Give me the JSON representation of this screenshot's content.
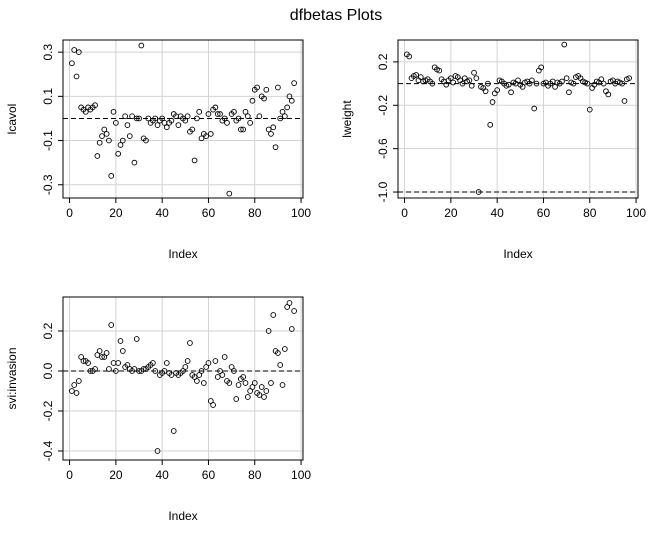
{
  "title": "dfbetas Plots",
  "chart_data": [
    {
      "type": "scatter",
      "xlabel": "Index",
      "ylabel": "lcavol",
      "color": "#000000",
      "grid": true,
      "xlim": [
        -2.84,
        100.84
      ],
      "xticks": [
        0,
        20,
        40,
        60,
        80,
        100
      ],
      "ylim": [
        -0.36,
        0.355
      ],
      "yticks": [
        0.3,
        0.1,
        -0.1,
        -0.3
      ],
      "hlines": [
        0
      ],
      "x": [
        1,
        2,
        3,
        4,
        5,
        6,
        7,
        8,
        9,
        10,
        11,
        12,
        13,
        14,
        15,
        16,
        17,
        18,
        19,
        20,
        21,
        22,
        23,
        24,
        25,
        26,
        27,
        28,
        29,
        30,
        31,
        32,
        33,
        34,
        35,
        36,
        37,
        38,
        39,
        40,
        41,
        42,
        43,
        44,
        45,
        46,
        47,
        48,
        49,
        50,
        51,
        52,
        53,
        54,
        55,
        56,
        57,
        58,
        59,
        60,
        61,
        62,
        63,
        64,
        65,
        66,
        67,
        68,
        69,
        70,
        71,
        72,
        73,
        74,
        75,
        76,
        77,
        78,
        79,
        80,
        81,
        82,
        83,
        84,
        85,
        86,
        87,
        88,
        89,
        90,
        91,
        92,
        93,
        94,
        95,
        96,
        97
      ],
      "values": [
        0.25,
        0.31,
        0.19,
        0.3,
        0.05,
        0.04,
        0.03,
        0.05,
        0.04,
        0.05,
        0.06,
        -0.17,
        -0.11,
        -0.08,
        -0.05,
        -0.07,
        -0.1,
        -0.26,
        0.03,
        -0.02,
        -0.16,
        -0.12,
        -0.1,
        0.01,
        -0.03,
        -0.08,
        0.01,
        -0.2,
        0.0,
        0.0,
        0.33,
        -0.09,
        -0.1,
        0.0,
        -0.02,
        -0.01,
        0.0,
        -0.03,
        -0.01,
        0.0,
        -0.02,
        -0.04,
        -0.02,
        -0.01,
        0.02,
        0.01,
        -0.03,
        0.01,
        0.0,
        -0.01,
        0.01,
        -0.06,
        -0.05,
        -0.19,
        0.0,
        0.03,
        -0.09,
        -0.07,
        -0.08,
        0.02,
        -0.07,
        0.04,
        0.05,
        0.02,
        0.02,
        -0.01,
        0.0,
        -0.02,
        -0.34,
        0.02,
        0.03,
        -0.01,
        0.0,
        -0.05,
        -0.05,
        0.03,
        0.01,
        -0.02,
        0.08,
        0.13,
        0.14,
        0.01,
        0.1,
        0.09,
        0.13,
        -0.05,
        -0.07,
        -0.04,
        -0.13,
        0.14,
        0.0,
        0.03,
        0.01,
        0.05,
        0.1,
        0.08,
        0.16
      ]
    },
    {
      "type": "scatter",
      "xlabel": "Index",
      "ylabel": "lweight",
      "color": "#000000",
      "grid": true,
      "xlim": [
        -2.84,
        100.84
      ],
      "xticks": [
        0,
        20,
        40,
        60,
        80,
        100
      ],
      "ylim": [
        -1.055,
        0.402
      ],
      "yticks": [
        0.2,
        -0.2,
        -0.6,
        {
          "value": -1,
          "label": "-1.0"
        }
      ],
      "hlines": [
        0,
        -1
      ],
      "x": [
        1,
        2,
        3,
        4,
        5,
        6,
        7,
        8,
        9,
        10,
        11,
        12,
        13,
        14,
        15,
        16,
        17,
        18,
        19,
        20,
        21,
        22,
        23,
        24,
        25,
        26,
        27,
        28,
        29,
        30,
        31,
        32,
        33,
        34,
        35,
        36,
        37,
        38,
        39,
        40,
        41,
        42,
        43,
        44,
        45,
        46,
        47,
        48,
        49,
        50,
        51,
        52,
        53,
        54,
        55,
        56,
        57,
        58,
        59,
        60,
        61,
        62,
        63,
        64,
        65,
        66,
        67,
        68,
        69,
        70,
        71,
        72,
        73,
        74,
        75,
        76,
        77,
        78,
        79,
        80,
        81,
        82,
        83,
        84,
        85,
        86,
        87,
        88,
        89,
        90,
        91,
        92,
        93,
        94,
        95,
        96,
        97
      ],
      "values": [
        0.27,
        0.25,
        0.05,
        0.07,
        0.08,
        0.03,
        0.06,
        0.02,
        0.03,
        0.04,
        0.02,
        0.0,
        0.15,
        0.13,
        0.12,
        0.04,
        0.02,
        -0.01,
        0.03,
        0.05,
        0.01,
        0.07,
        0.06,
        0.03,
        0.0,
        0.05,
        0.02,
        0.03,
        -0.02,
        0.1,
        0.05,
        -1.0,
        -0.03,
        -0.04,
        -0.07,
        0.0,
        -0.38,
        -0.17,
        -0.09,
        -0.06,
        0.03,
        0.02,
        0.0,
        -0.02,
        -0.01,
        -0.08,
        0.01,
        0.0,
        0.03,
        -0.01,
        -0.03,
        0.01,
        0.02,
        0.0,
        0.03,
        -0.23,
        0.0,
        0.12,
        0.15,
        0.0,
        0.01,
        -0.02,
        0.0,
        0.02,
        -0.03,
        0.01,
        0.0,
        0.02,
        0.36,
        0.05,
        -0.08,
        0.01,
        0.0,
        0.06,
        0.07,
        0.05,
        0.02,
        0.01,
        0.0,
        -0.24,
        -0.04,
        -0.01,
        0.02,
        0.01,
        0.04,
        0.0,
        -0.07,
        -0.1,
        0.02,
        0.03,
        0.0,
        0.02,
        0.01,
        0.0,
        -0.16,
        0.04,
        0.05
      ]
    },
    {
      "type": "scatter",
      "xlabel": "Index",
      "ylabel": "svi:invasion",
      "color": "#000000",
      "grid": true,
      "xlim": [
        -2.84,
        100.84
      ],
      "xticks": [
        0,
        20,
        40,
        60,
        80,
        100
      ],
      "ylim": [
        -0.445,
        0.37
      ],
      "yticks": [
        0.2,
        {
          "value": 0,
          "label": "0.0"
        },
        -0.2,
        -0.4
      ],
      "hlines": [
        0
      ],
      "x": [
        1,
        2,
        3,
        4,
        5,
        6,
        7,
        8,
        9,
        10,
        11,
        12,
        13,
        14,
        15,
        16,
        17,
        18,
        19,
        20,
        21,
        22,
        23,
        24,
        25,
        26,
        27,
        28,
        29,
        30,
        31,
        32,
        33,
        34,
        35,
        36,
        37,
        38,
        39,
        40,
        41,
        42,
        43,
        44,
        45,
        46,
        47,
        48,
        49,
        50,
        51,
        52,
        53,
        54,
        55,
        56,
        57,
        58,
        59,
        60,
        61,
        62,
        63,
        64,
        65,
        66,
        67,
        68,
        69,
        70,
        71,
        72,
        73,
        74,
        75,
        76,
        77,
        78,
        79,
        80,
        81,
        82,
        83,
        84,
        85,
        86,
        87,
        88,
        89,
        90,
        91,
        92,
        93,
        94,
        95,
        96,
        97
      ],
      "values": [
        -0.1,
        -0.07,
        -0.11,
        -0.05,
        0.07,
        0.05,
        0.05,
        0.04,
        0.0,
        0.0,
        0.01,
        0.08,
        0.1,
        0.07,
        0.07,
        0.09,
        0.01,
        0.23,
        0.04,
        0.0,
        0.04,
        0.15,
        0.1,
        0.02,
        0.03,
        0.01,
        0.0,
        0.01,
        0.16,
        0.0,
        0.0,
        0.01,
        0.01,
        0.02,
        0.03,
        0.04,
        0.0,
        -0.4,
        -0.02,
        -0.01,
        0.0,
        0.04,
        -0.01,
        -0.02,
        -0.3,
        -0.01,
        -0.02,
        -0.01,
        0.0,
        0.02,
        0.05,
        0.14,
        -0.02,
        -0.03,
        -0.05,
        -0.02,
        0.0,
        -0.06,
        0.02,
        0.04,
        -0.15,
        -0.17,
        0.05,
        -0.03,
        0.0,
        -0.02,
        0.07,
        -0.05,
        -0.06,
        0.02,
        0.0,
        -0.14,
        -0.07,
        -0.04,
        -0.03,
        -0.06,
        -0.13,
        -0.1,
        -0.08,
        -0.06,
        -0.11,
        -0.12,
        -0.08,
        -0.13,
        -0.1,
        0.2,
        -0.06,
        0.28,
        0.1,
        0.09,
        0.03,
        -0.07,
        0.11,
        0.32,
        0.34,
        0.21,
        0.3
      ]
    }
  ]
}
